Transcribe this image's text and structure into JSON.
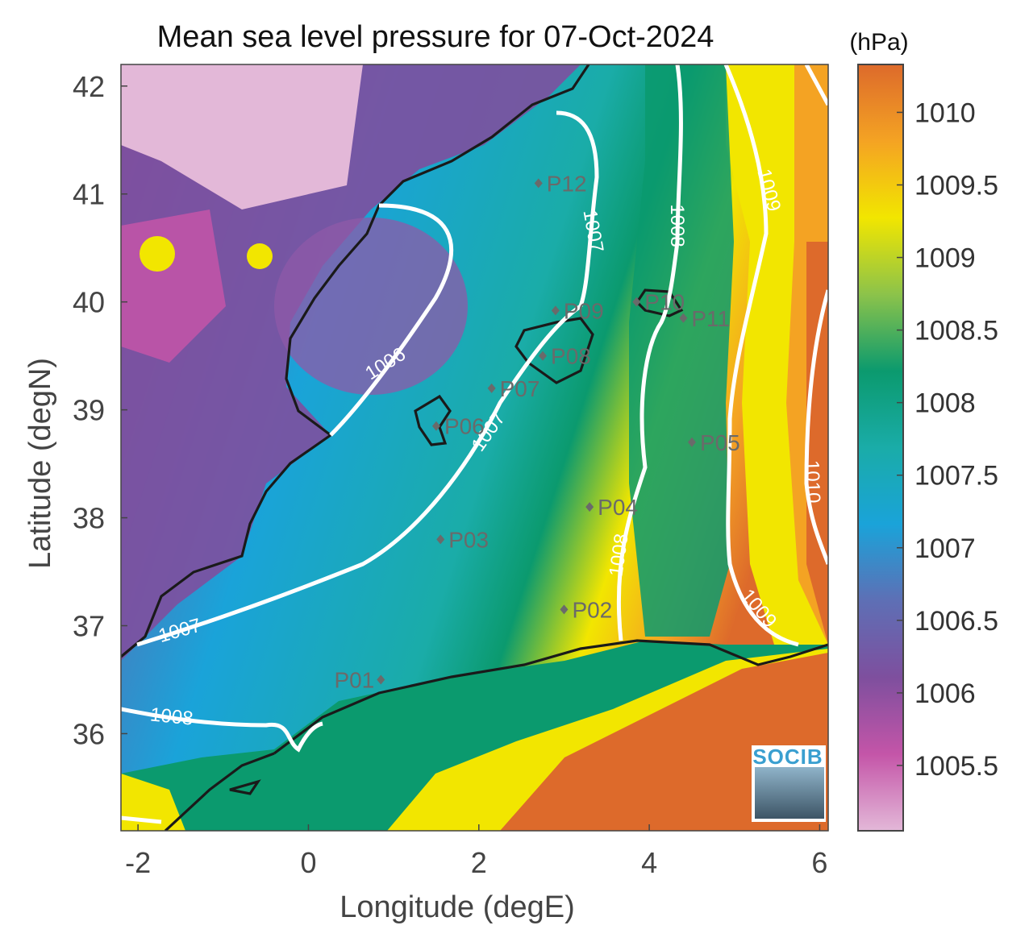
{
  "title": "Mean sea level pressure for 07-Oct-2024",
  "colorbar": {
    "unit_label": "(hPa)",
    "ticks": [
      "1010",
      "1009.5",
      "1009",
      "1008.5",
      "1008",
      "1007.5",
      "1007",
      "1006.5",
      "1006",
      "1005.5"
    ],
    "colors": [
      "#e3b8d8",
      "#c455a8",
      "#7e4f9e",
      "#5e6fb5",
      "#1aa3d9",
      "#1aaca8",
      "#0b9a6e",
      "#8cc34a",
      "#f2e600",
      "#f4a323",
      "#dd6a2b"
    ]
  },
  "axes": {
    "xlabel": "Longitude (degE)",
    "ylabel": "Latitude (degN)",
    "xticks": [
      "-2",
      "0",
      "2",
      "4",
      "6"
    ],
    "yticks": [
      "42",
      "41",
      "40",
      "39",
      "38",
      "37",
      "36"
    ],
    "xlim": [
      -2.2,
      6.1
    ],
    "ylim": [
      35.1,
      42.2
    ]
  },
  "isobars": [
    "1006",
    "1007",
    "1007",
    "1007",
    "1007",
    "1008",
    "1008",
    "1008",
    "1009",
    "1009",
    "1010"
  ],
  "points": [
    {
      "label": "P01",
      "lon": 0.85,
      "lat": 36.5
    },
    {
      "label": "P02",
      "lon": 3.0,
      "lat": 37.15
    },
    {
      "label": "P03",
      "lon": 1.55,
      "lat": 37.8
    },
    {
      "label": "P04",
      "lon": 3.3,
      "lat": 38.1
    },
    {
      "label": "P05",
      "lon": 4.5,
      "lat": 38.7
    },
    {
      "label": "P06",
      "lon": 1.5,
      "lat": 38.85
    },
    {
      "label": "P07",
      "lon": 2.15,
      "lat": 39.2
    },
    {
      "label": "P08",
      "lon": 2.75,
      "lat": 39.5
    },
    {
      "label": "P09",
      "lon": 2.9,
      "lat": 39.92
    },
    {
      "label": "P10",
      "lon": 3.85,
      "lat": 40.0
    },
    {
      "label": "P11",
      "lon": 4.4,
      "lat": 39.85
    },
    {
      "label": "P12",
      "lon": 2.7,
      "lat": 41.1
    }
  ],
  "logo": {
    "text": "SOCIB"
  }
}
